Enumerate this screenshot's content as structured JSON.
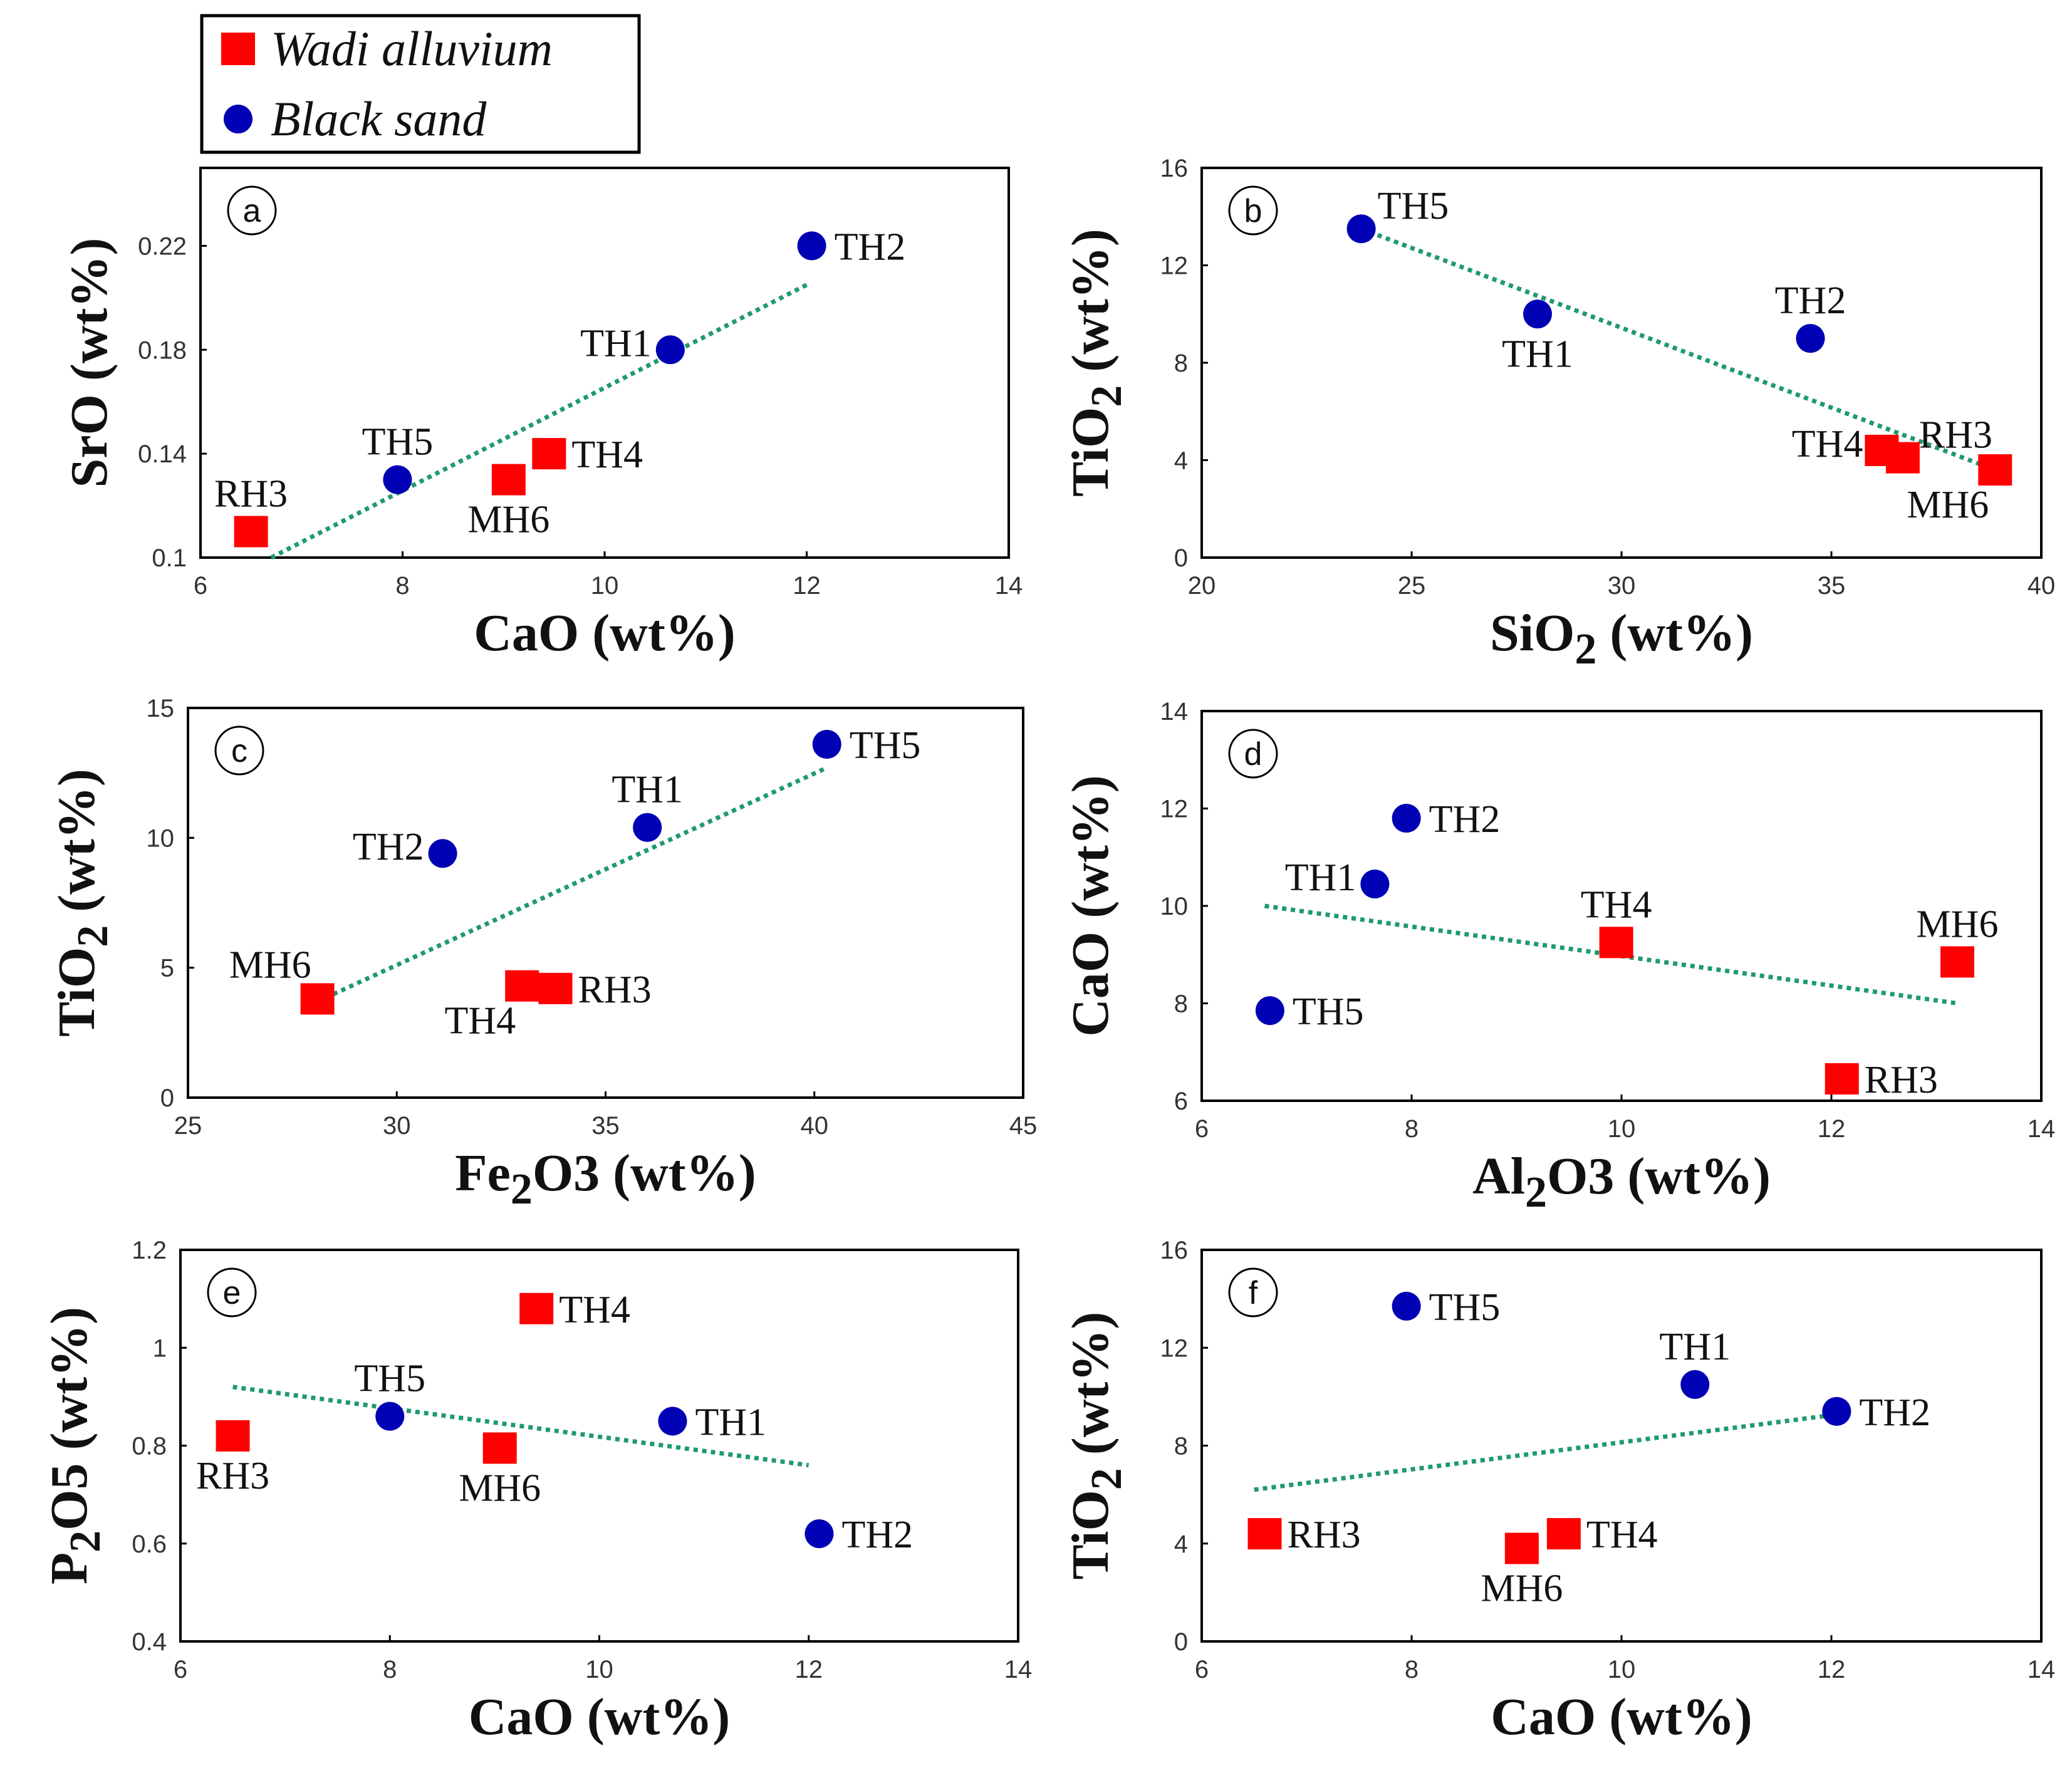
{
  "legend": {
    "items": [
      {
        "label": "Wadi alluvium",
        "marker": "square",
        "color": "#ff0000"
      },
      {
        "label": "Black sand",
        "marker": "circle",
        "color": "#0000b4"
      }
    ]
  },
  "colors": {
    "trend": "#1f9a6f",
    "wadi": "#ff0000",
    "black": "#0000b4"
  },
  "chart_data": [
    {
      "type": "scatter",
      "panel": "a",
      "x_main": "CaO",
      "x_sub": "",
      "x_rest": "",
      "x_unit": "(wt%)",
      "y_main": "SrO",
      "y_sub": "",
      "y_rest": "",
      "y_unit": "(wt%)",
      "xlim": [
        6,
        14
      ],
      "ylim": [
        0.1,
        0.25
      ],
      "xticks": [
        6,
        8,
        10,
        12,
        14
      ],
      "xtick_labels": [
        "6",
        "8",
        "10",
        "12",
        "14"
      ],
      "yticks": [
        0.1,
        0.14,
        0.18,
        0.22
      ],
      "ytick_labels": [
        "0.1",
        "0.14",
        "0.18",
        "0.22"
      ],
      "trend": [
        [
          6.7,
          0.1
        ],
        [
          12.0,
          0.205
        ]
      ],
      "points": [
        {
          "label": "TH2",
          "x": 12.05,
          "y": 0.22,
          "group": "Black sand",
          "pos": "right"
        },
        {
          "label": "TH1",
          "x": 10.65,
          "y": 0.18,
          "group": "Black sand",
          "pos": "left"
        },
        {
          "label": "TH5",
          "x": 7.95,
          "y": 0.13,
          "group": "Black sand",
          "pos": "above"
        },
        {
          "label": "TH4",
          "x": 9.45,
          "y": 0.14,
          "group": "Wadi alluvium",
          "pos": "right"
        },
        {
          "label": "MH6",
          "x": 9.05,
          "y": 0.13,
          "group": "Wadi alluvium",
          "pos": "below"
        },
        {
          "label": "RH3",
          "x": 6.5,
          "y": 0.11,
          "group": "Wadi alluvium",
          "pos": "above"
        }
      ]
    },
    {
      "type": "scatter",
      "panel": "b",
      "x_main": "SiO",
      "x_sub": "2",
      "x_rest": "",
      "x_unit": "(wt%)",
      "y_main": "TiO",
      "y_sub": "2",
      "y_rest": "",
      "y_unit": "(wt%)",
      "xlim": [
        20,
        40
      ],
      "ylim": [
        0,
        16
      ],
      "xticks": [
        20,
        25,
        30,
        35,
        40
      ],
      "xtick_labels": [
        "20",
        "25",
        "30",
        "35",
        "40"
      ],
      "yticks": [
        0,
        4,
        8,
        12,
        16
      ],
      "ytick_labels": [
        "0",
        "4",
        "8",
        "12",
        "16"
      ],
      "trend": [
        [
          23.8,
          13.5
        ],
        [
          38.9,
          3.6
        ]
      ],
      "points": [
        {
          "label": "TH5",
          "x": 23.8,
          "y": 13.5,
          "group": "Black sand",
          "pos": "upright"
        },
        {
          "label": "TH1",
          "x": 28.0,
          "y": 10.0,
          "group": "Black sand",
          "pos": "below"
        },
        {
          "label": "TH2",
          "x": 34.5,
          "y": 9.0,
          "group": "Black sand",
          "pos": "above"
        },
        {
          "label": "TH4",
          "x": 36.2,
          "y": 4.4,
          "group": "Wadi alluvium",
          "pos": "left"
        },
        {
          "label": "RH3",
          "x": 36.7,
          "y": 4.1,
          "group": "Wadi alluvium",
          "pos": "upright"
        },
        {
          "label": "MH6",
          "x": 38.9,
          "y": 3.6,
          "group": "Wadi alluvium",
          "pos": "belowleft"
        }
      ]
    },
    {
      "type": "scatter",
      "panel": "c",
      "x_main": "Fe",
      "x_sub": "2",
      "x_rest": "O3",
      "x_unit": "(wt%)",
      "y_main": "TiO",
      "y_sub": "2",
      "y_rest": "",
      "y_unit": "(wt%)",
      "xlim": [
        25,
        45
      ],
      "ylim": [
        0,
        15
      ],
      "xticks": [
        25,
        30,
        35,
        40,
        45
      ],
      "xtick_labels": [
        "25",
        "30",
        "35",
        "40",
        "45"
      ],
      "yticks": [
        0,
        5,
        10,
        15
      ],
      "ytick_labels": [
        "0",
        "5",
        "10",
        "15"
      ],
      "trend": [
        [
          28.1,
          3.7
        ],
        [
          40.3,
          12.7
        ]
      ],
      "points": [
        {
          "label": "TH5",
          "x": 40.3,
          "y": 13.6,
          "group": "Black sand",
          "pos": "right"
        },
        {
          "label": "TH1",
          "x": 36.0,
          "y": 10.4,
          "group": "Black sand",
          "pos": "above"
        },
        {
          "label": "TH2",
          "x": 31.1,
          "y": 9.4,
          "group": "Black sand",
          "pos": "left"
        },
        {
          "label": "MH6",
          "x": 28.1,
          "y": 3.8,
          "group": "Wadi alluvium",
          "pos": "upleft"
        },
        {
          "label": "TH4",
          "x": 33.0,
          "y": 4.3,
          "group": "Wadi alluvium",
          "pos": "belowleft"
        },
        {
          "label": "RH3",
          "x": 33.8,
          "y": 4.2,
          "group": "Wadi alluvium",
          "pos": "right"
        }
      ]
    },
    {
      "type": "scatter",
      "panel": "d",
      "x_main": "Al",
      "x_sub": "2",
      "x_rest": "O3",
      "x_unit": "(wt%)",
      "y_main": "CaO",
      "y_sub": "",
      "y_rest": "",
      "y_unit": "(wt%)",
      "xlim": [
        6,
        14
      ],
      "ylim": [
        6,
        14
      ],
      "xticks": [
        6,
        8,
        10,
        12,
        14
      ],
      "xtick_labels": [
        "6",
        "8",
        "10",
        "12",
        "14"
      ],
      "yticks": [
        6,
        8,
        10,
        12,
        14
      ],
      "ytick_labels": [
        "6",
        "8",
        "10",
        "12",
        "14"
      ],
      "trend": [
        [
          6.6,
          10.0
        ],
        [
          13.2,
          8.0
        ]
      ],
      "points": [
        {
          "label": "TH2",
          "x": 7.95,
          "y": 11.8,
          "group": "Black sand",
          "pos": "right"
        },
        {
          "label": "TH1",
          "x": 7.65,
          "y": 10.45,
          "group": "Black sand",
          "pos": "left"
        },
        {
          "label": "TH5",
          "x": 6.65,
          "y": 7.85,
          "group": "Black sand",
          "pos": "right"
        },
        {
          "label": "TH4",
          "x": 9.95,
          "y": 9.25,
          "group": "Wadi alluvium",
          "pos": "above"
        },
        {
          "label": "MH6",
          "x": 13.2,
          "y": 8.85,
          "group": "Wadi alluvium",
          "pos": "above"
        },
        {
          "label": "RH3",
          "x": 12.1,
          "y": 6.45,
          "group": "Wadi alluvium",
          "pos": "right"
        }
      ]
    },
    {
      "type": "scatter",
      "panel": "e",
      "x_main": "CaO",
      "x_sub": "",
      "x_rest": "",
      "x_unit": "(wt%)",
      "y_main": "P",
      "y_sub": "2",
      "y_rest": "O5",
      "y_unit": "(wt%)",
      "xlim": [
        6,
        14
      ],
      "ylim": [
        0.4,
        1.2
      ],
      "xticks": [
        6,
        8,
        10,
        12,
        14
      ],
      "xtick_labels": [
        "6",
        "8",
        "10",
        "12",
        "14"
      ],
      "yticks": [
        0.4,
        0.6,
        0.8,
        1.0,
        1.2
      ],
      "ytick_labels": [
        "0.4",
        "0.6",
        "0.8",
        "1",
        "1.2"
      ],
      "trend": [
        [
          6.5,
          0.92
        ],
        [
          12.0,
          0.76
        ]
      ],
      "points": [
        {
          "label": "TH4",
          "x": 9.4,
          "y": 1.08,
          "group": "Wadi alluvium",
          "pos": "right"
        },
        {
          "label": "TH5",
          "x": 8.0,
          "y": 0.86,
          "group": "Black sand",
          "pos": "above"
        },
        {
          "label": "TH1",
          "x": 10.7,
          "y": 0.85,
          "group": "Black sand",
          "pos": "right"
        },
        {
          "label": "RH3",
          "x": 6.5,
          "y": 0.82,
          "group": "Wadi alluvium",
          "pos": "below"
        },
        {
          "label": "MH6",
          "x": 9.05,
          "y": 0.795,
          "group": "Wadi alluvium",
          "pos": "below"
        },
        {
          "label": "TH2",
          "x": 12.1,
          "y": 0.62,
          "group": "Black sand",
          "pos": "right"
        }
      ]
    },
    {
      "type": "scatter",
      "panel": "f",
      "x_main": "CaO",
      "x_sub": "",
      "x_rest": "",
      "x_unit": "(wt%)",
      "y_main": "TiO",
      "y_sub": "2",
      "y_rest": "",
      "y_unit": "(wt%)",
      "xlim": [
        6,
        14
      ],
      "ylim": [
        0,
        16
      ],
      "xticks": [
        6,
        8,
        10,
        12,
        14
      ],
      "xtick_labels": [
        "6",
        "8",
        "10",
        "12",
        "14"
      ],
      "yticks": [
        0,
        4,
        8,
        12,
        16
      ],
      "ytick_labels": [
        "0",
        "4",
        "8",
        "12",
        "16"
      ],
      "trend": [
        [
          6.5,
          6.2
        ],
        [
          12.1,
          9.3
        ]
      ],
      "points": [
        {
          "label": "TH5",
          "x": 7.95,
          "y": 13.7,
          "group": "Black sand",
          "pos": "right"
        },
        {
          "label": "TH1",
          "x": 10.7,
          "y": 10.5,
          "group": "Black sand",
          "pos": "above"
        },
        {
          "label": "TH2",
          "x": 12.05,
          "y": 9.4,
          "group": "Black sand",
          "pos": "right"
        },
        {
          "label": "RH3",
          "x": 6.6,
          "y": 4.4,
          "group": "Wadi alluvium",
          "pos": "right"
        },
        {
          "label": "MH6",
          "x": 9.05,
          "y": 3.8,
          "group": "Wadi alluvium",
          "pos": "below"
        },
        {
          "label": "TH4",
          "x": 9.45,
          "y": 4.4,
          "group": "Wadi alluvium",
          "pos": "right"
        }
      ]
    }
  ]
}
